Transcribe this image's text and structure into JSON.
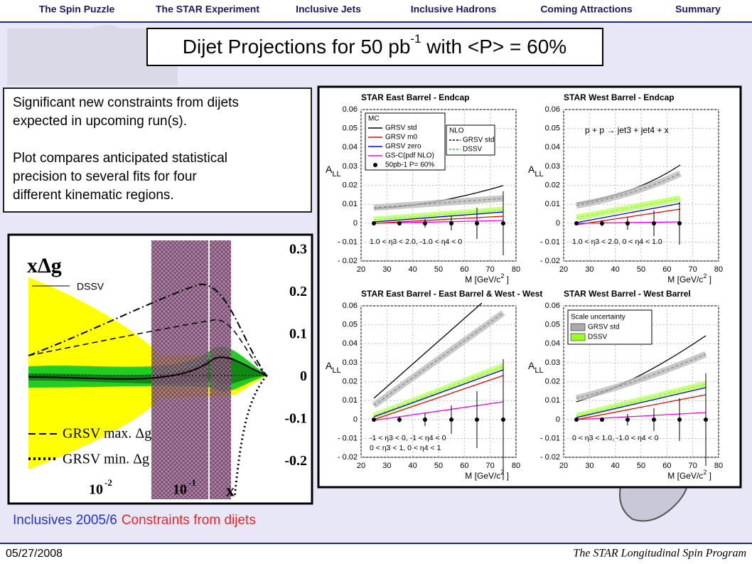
{
  "nav": [
    "The Spin Puzzle",
    "The STAR Experiment",
    "Inclusive Jets",
    "Inclusive Hadrons",
    "Coming Attractions",
    "Summary"
  ],
  "title": {
    "text": "Dijet Projections for 50 pb",
    "sup": "-1",
    "rest": " with <P> = 60%"
  },
  "text_box": {
    "paragraphs": [
      [
        "Significant new constraints from dijets",
        "expected in upcoming run(s)."
      ],
      [
        "Plot compares anticipated statistical",
        "precision to several fits for four",
        "different kinematic regions."
      ]
    ]
  },
  "left_plot": {
    "ylabel": "xΔg",
    "legend": [
      "DSSV",
      "GRSV max. Δg",
      "GRSV min. Δg"
    ],
    "yticks": [
      "0.3",
      "0.2",
      "0.1",
      "0",
      "-0.1",
      "-0.2"
    ],
    "xticks": [
      {
        "base": "10",
        "exp": "-2"
      },
      {
        "base": "10",
        "exp": "-1"
      }
    ],
    "xlabel": "x"
  },
  "caption": {
    "left": "Inclusives 2005/6",
    "right": "Constraints from dijets"
  },
  "right_plots": {
    "yticks": [
      "0.06",
      "0.05",
      "0.04",
      "0.03",
      "0.02",
      "0.01",
      "0",
      "- 0.01",
      "- 0.02"
    ],
    "xticks": [
      "20",
      "30",
      "40",
      "50",
      "60",
      "70",
      "80"
    ],
    "xlabel": {
      "text": "M [GeV/c",
      "sup": "2",
      "rest": " ]"
    },
    "ylabel": {
      "text": "A",
      "sub": "LL"
    },
    "panels": [
      {
        "title": "STAR East Barrel - Endcap",
        "legend_mc": [
          "MC",
          "GRSV std",
          "GRSV m0",
          "GRSV zero",
          "GS-C(pdf NLO)",
          "50pb-1 P= 60%"
        ],
        "legend_nlo": [
          "NLO",
          "GRSV std",
          "DSSV"
        ],
        "region": [
          "1.0 < η3 < 2.0, -1.0 < η4 < 0"
        ]
      },
      {
        "title": "STAR West Barrel - Endcap",
        "reaction": "p + p → jet3 + jet4 + x",
        "region": [
          "1.0 < η3 < 2.0, 0 < η4 < 1.0"
        ]
      },
      {
        "title": "STAR East Barrel - East Barrel & West - West",
        "region": [
          "-1 < η3 < 0, -1 < η4 < 0",
          "0 < η3 < 1, 0 < η4 < 1"
        ]
      },
      {
        "title": "STAR West Barrel - West Barrel",
        "legend_scale": [
          "Scale uncertainty",
          "GRSV std",
          "DSSV"
        ],
        "region": [
          "0 < η3 < 1.0, -1.0 < η4 < 0"
        ]
      }
    ]
  },
  "footer": {
    "date": "05/27/2008",
    "program": "The STAR Longitudinal Spin Program"
  }
}
